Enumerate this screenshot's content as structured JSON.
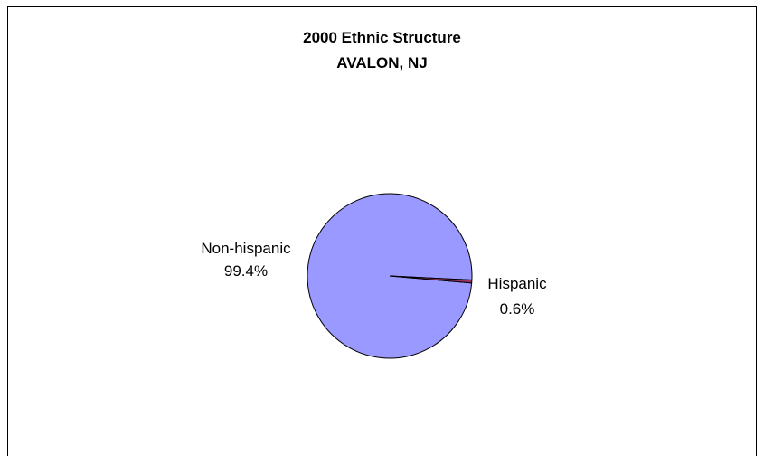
{
  "chart_data": {
    "type": "pie",
    "title": "2000 Ethnic Structure",
    "subtitle": "AVALON, NJ",
    "slices": [
      {
        "label": "Non-hispanic",
        "value": 99.4,
        "display": "99.4%",
        "color": "#9999ff"
      },
      {
        "label": "Hispanic",
        "value": 0.6,
        "display": "0.6%",
        "color": "#993366"
      }
    ],
    "legend": "none",
    "grid": false
  }
}
